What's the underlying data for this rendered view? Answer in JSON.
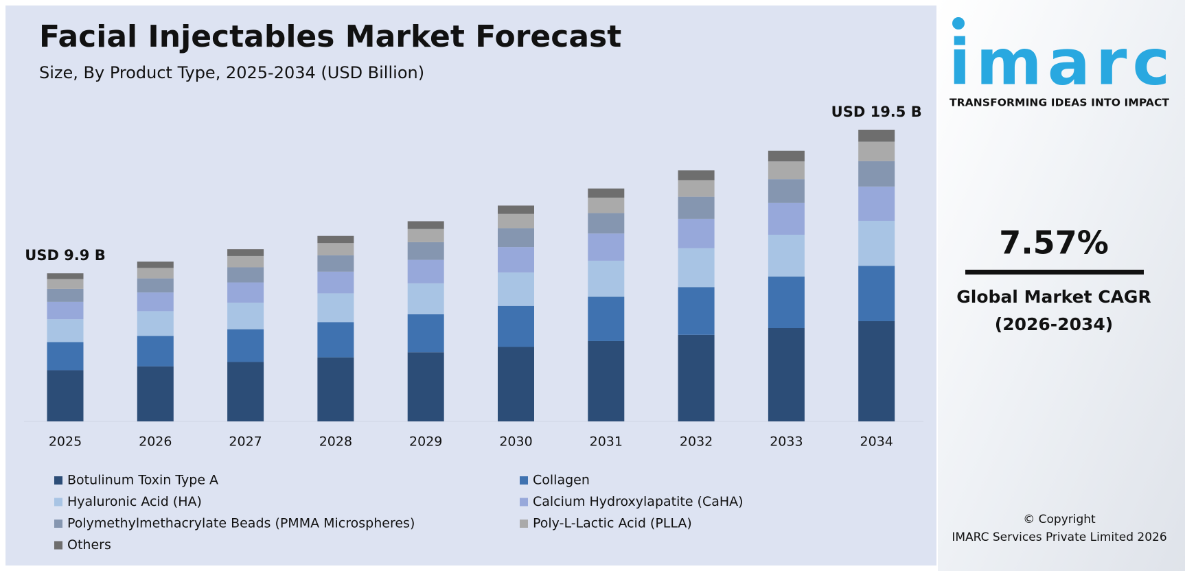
{
  "chart_data": {
    "type": "bar",
    "stacked": true,
    "title": "Facial Injectables Market Forecast",
    "subtitle": "Size, By Product Type, 2025-2034 (USD Billion)",
    "categories": [
      "2025",
      "2026",
      "2027",
      "2028",
      "2029",
      "2030",
      "2031",
      "2032",
      "2033",
      "2034"
    ],
    "series": [
      {
        "name": "Botulinum Toxin Type A",
        "color": "#2c4d77",
        "values": [
          3.42,
          3.68,
          3.97,
          4.28,
          4.62,
          4.98,
          5.37,
          5.79,
          6.24,
          6.7
        ]
      },
      {
        "name": "Collagen",
        "color": "#3f72b0",
        "values": [
          1.88,
          2.03,
          2.19,
          2.36,
          2.54,
          2.74,
          2.96,
          3.19,
          3.44,
          3.7
        ]
      },
      {
        "name": "Hyaluronic Acid (HA)",
        "color": "#a8c4e4",
        "values": [
          1.53,
          1.66,
          1.78,
          1.92,
          2.07,
          2.24,
          2.41,
          2.6,
          2.8,
          3.0
        ]
      },
      {
        "name": "Calcium Hydroxylapatite (CaHA)",
        "color": "#97a8da",
        "values": [
          1.16,
          1.25,
          1.35,
          1.45,
          1.57,
          1.69,
          1.82,
          1.96,
          2.12,
          2.3
        ]
      },
      {
        "name": "Polymethylmethacrylate Beads (PMMA Microspheres)",
        "color": "#8596b0",
        "values": [
          0.87,
          0.94,
          1.01,
          1.09,
          1.18,
          1.27,
          1.37,
          1.48,
          1.59,
          1.7
        ]
      },
      {
        "name": "Poly-L-Lactic Acid (PLLA)",
        "color": "#aaaaaa",
        "values": [
          0.65,
          0.7,
          0.76,
          0.82,
          0.88,
          0.95,
          1.03,
          1.11,
          1.19,
          1.3
        ]
      },
      {
        "name": "Others",
        "color": "#6e6e6e",
        "values": [
          0.39,
          0.42,
          0.45,
          0.48,
          0.52,
          0.56,
          0.61,
          0.65,
          0.71,
          0.8
        ]
      }
    ],
    "annotations": [
      "USD 9.9 B",
      "USD 19.5 B"
    ]
  },
  "sidebar": {
    "logo": "imarc",
    "tagline": "TRANSFORMING IDEAS INTO IMPACT",
    "cagr": "7.57%",
    "cagr_label": "Global Market CAGR",
    "cagr_period": "(2026-2034)",
    "copyright": "© Copyright",
    "company": "IMARC Services Private Limited 2026"
  }
}
